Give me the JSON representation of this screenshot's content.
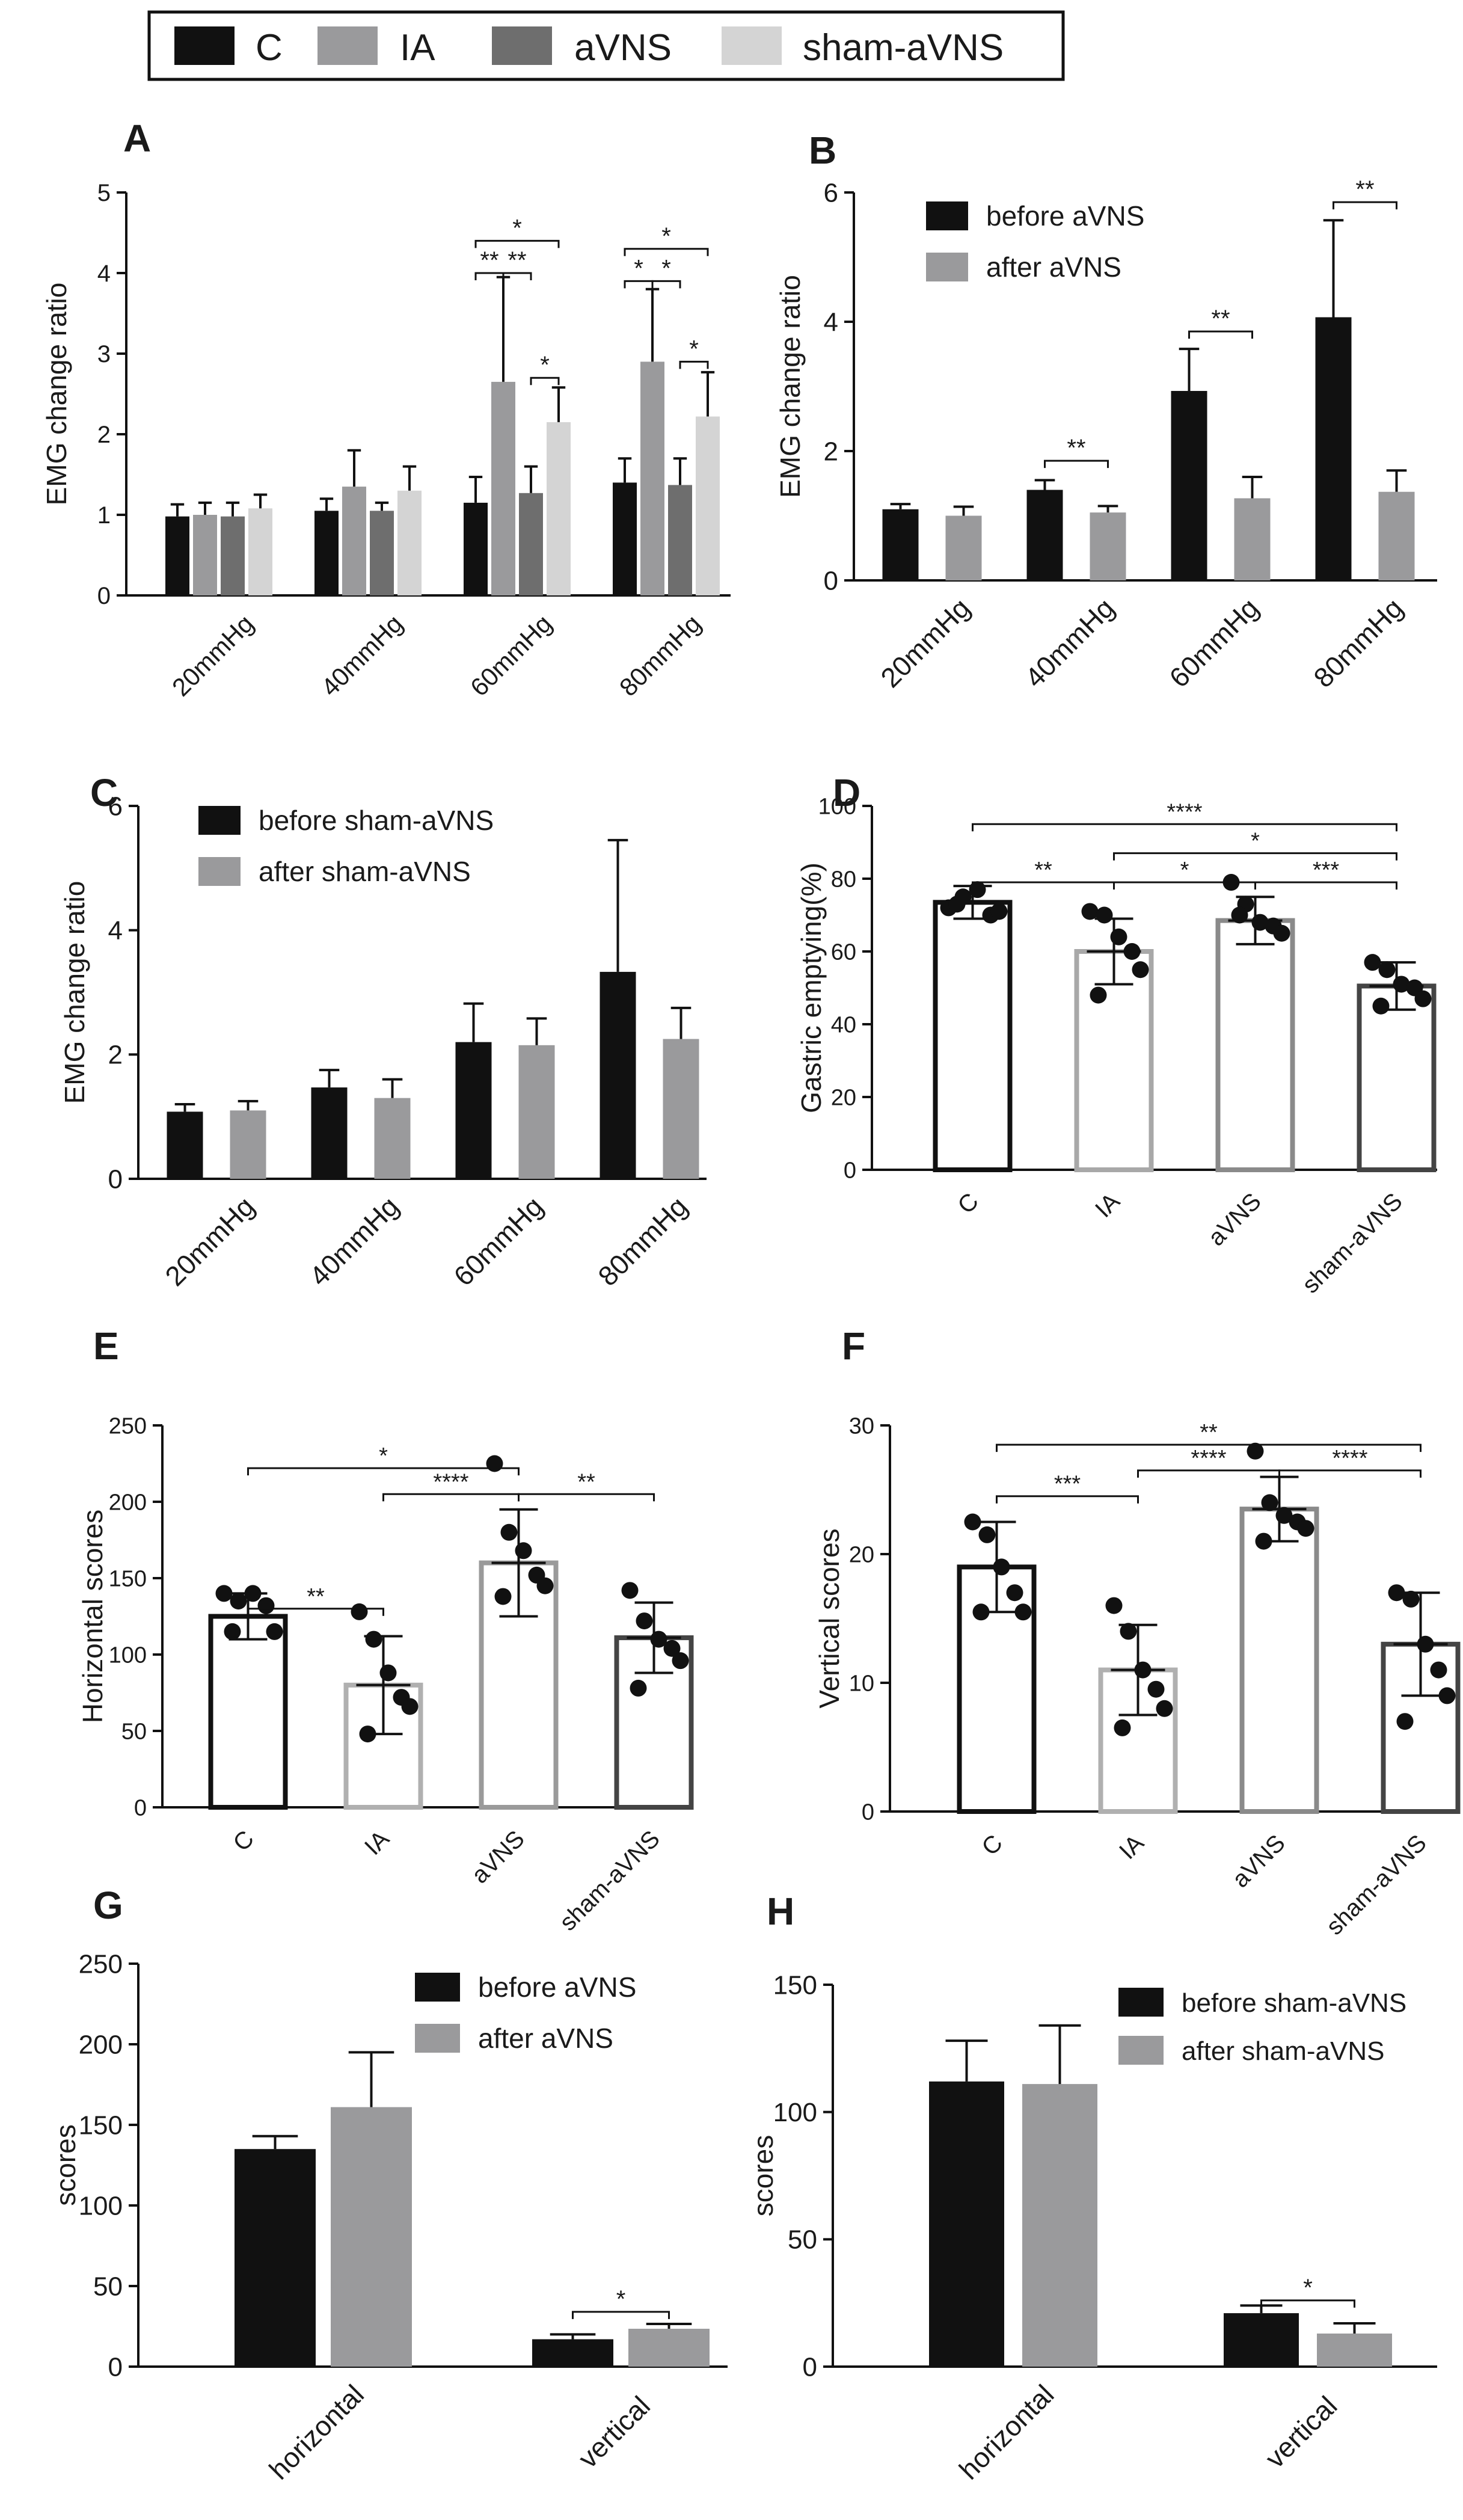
{
  "legend": [
    {
      "label": "C",
      "color": "#111111"
    },
    {
      "label": "IA",
      "color": "#9a9a9c"
    },
    {
      "label": "aVNS",
      "color": "#6e6e6e"
    },
    {
      "label": "sham-aVNS",
      "color": "#d4d4d4"
    }
  ],
  "chart_data": [
    {
      "panel": "A",
      "type": "bar",
      "ylabel": "EMG change ratio",
      "ylim": [
        0,
        5
      ],
      "yticks": [
        0,
        1,
        2,
        3,
        4,
        5
      ],
      "categories": [
        "20mmHg",
        "40mmHg",
        "60mmHg",
        "80mmHg"
      ],
      "series": [
        {
          "name": "C",
          "color": "#111111",
          "values": [
            0.98,
            1.05,
            1.15,
            1.4
          ],
          "errors": [
            0.15,
            0.15,
            0.32,
            0.3
          ]
        },
        {
          "name": "IA",
          "color": "#9a9a9c",
          "values": [
            1.0,
            1.35,
            2.65,
            2.9
          ],
          "errors": [
            0.15,
            0.45,
            1.3,
            0.9
          ]
        },
        {
          "name": "aVNS",
          "color": "#6e6e6e",
          "values": [
            0.98,
            1.05,
            1.27,
            1.37
          ],
          "errors": [
            0.17,
            0.1,
            0.33,
            0.33
          ]
        },
        {
          "name": "sham-aVNS",
          "color": "#d4d4d4",
          "values": [
            1.08,
            1.3,
            2.15,
            2.22
          ],
          "errors": [
            0.17,
            0.3,
            0.43,
            0.55
          ]
        }
      ],
      "significance": [
        {
          "cat": 2,
          "from": 0,
          "to": 3,
          "y": 4.4,
          "label": "*"
        },
        {
          "cat": 2,
          "from": 0,
          "to": 1,
          "y": 4.0,
          "label": "**"
        },
        {
          "cat": 2,
          "from": 1,
          "to": 2,
          "y": 4.0,
          "label": "**"
        },
        {
          "cat": 2,
          "from": 2,
          "to": 3,
          "y": 2.7,
          "label": "*"
        },
        {
          "cat": 3,
          "from": 0,
          "to": 3,
          "y": 4.3,
          "label": "*"
        },
        {
          "cat": 3,
          "from": 0,
          "to": 1,
          "y": 3.9,
          "label": "*"
        },
        {
          "cat": 3,
          "from": 1,
          "to": 2,
          "y": 3.9,
          "label": "*"
        },
        {
          "cat": 3,
          "from": 2,
          "to": 3,
          "y": 2.9,
          "label": "*"
        }
      ]
    },
    {
      "panel": "B",
      "type": "bar",
      "ylabel": "EMG change ratio",
      "ylim": [
        0,
        6
      ],
      "yticks": [
        0,
        2,
        4,
        6
      ],
      "categories": [
        "20mmHg",
        "40mmHg",
        "60mmHg",
        "80mmHg"
      ],
      "series": [
        {
          "name": "before aVNS",
          "color": "#111111",
          "values": [
            1.1,
            1.4,
            2.93,
            4.07
          ],
          "errors": [
            0.08,
            0.15,
            0.65,
            1.5
          ]
        },
        {
          "name": "after aVNS",
          "color": "#9a9a9c",
          "values": [
            1.0,
            1.05,
            1.27,
            1.37
          ],
          "errors": [
            0.14,
            0.1,
            0.33,
            0.33
          ]
        }
      ],
      "legend": [
        "before aVNS",
        "after aVNS"
      ],
      "significance": [
        {
          "cat": 1,
          "from": 0,
          "to": 1,
          "y": 1.85,
          "label": "**"
        },
        {
          "cat": 2,
          "from": 0,
          "to": 1,
          "y": 3.85,
          "label": "**"
        },
        {
          "cat": 3,
          "from": 0,
          "to": 1,
          "y": 5.85,
          "label": "**"
        }
      ]
    },
    {
      "panel": "C",
      "type": "bar",
      "ylabel": "EMG change ratio",
      "ylim": [
        0,
        6
      ],
      "yticks": [
        0,
        2,
        4,
        6
      ],
      "categories": [
        "20mmHg",
        "40mmHg",
        "60mmHg",
        "80mmHg"
      ],
      "series": [
        {
          "name": "before sham-aVNS",
          "color": "#111111",
          "values": [
            1.08,
            1.47,
            2.2,
            3.33
          ],
          "errors": [
            0.12,
            0.28,
            0.62,
            2.12
          ]
        },
        {
          "name": "after sham-aVNS",
          "color": "#9a9a9c",
          "values": [
            1.1,
            1.3,
            2.15,
            2.25
          ],
          "errors": [
            0.15,
            0.3,
            0.43,
            0.5
          ]
        }
      ],
      "legend": [
        "before sham-aVNS",
        "after sham-aVNS"
      ],
      "significance": []
    },
    {
      "panel": "D",
      "type": "scatter-bar",
      "ylabel": "Gastric emptying(%)",
      "ylim": [
        0,
        100
      ],
      "yticks": [
        0,
        20,
        40,
        60,
        80,
        100
      ],
      "categories": [
        "C",
        "IA",
        "aVNS",
        "sham-aVNS"
      ],
      "colors": [
        "#111111",
        "#a8a8a8",
        "#8a8a8a",
        "#444444"
      ],
      "means": [
        73.5,
        60,
        68.5,
        50.5
      ],
      "errors": [
        4.5,
        9,
        6.5,
        6.5
      ],
      "points": [
        [
          72,
          75,
          77,
          70,
          71,
          73
        ],
        [
          71,
          70,
          64,
          60,
          55,
          48
        ],
        [
          79,
          73,
          68,
          67,
          65,
          70
        ],
        [
          57,
          55,
          51,
          50,
          47,
          45
        ]
      ],
      "significance": [
        {
          "from": 0,
          "to": 3,
          "y": 95,
          "label": "****"
        },
        {
          "from": 1,
          "to": 3,
          "y": 87,
          "label": "*"
        },
        {
          "from": 0,
          "to": 1,
          "y": 79,
          "label": "**"
        },
        {
          "from": 1,
          "to": 2,
          "y": 79,
          "label": "*"
        },
        {
          "from": 2,
          "to": 3,
          "y": 79,
          "label": "***"
        }
      ]
    },
    {
      "panel": "E",
      "type": "scatter-bar",
      "ylabel": "Horizontal scores",
      "ylim": [
        0,
        250
      ],
      "yticks": [
        0,
        50,
        100,
        150,
        200,
        250
      ],
      "categories": [
        "C",
        "IA",
        "aVNS",
        "sham-aVNS"
      ],
      "colors": [
        "#111111",
        "#b0b0b0",
        "#9a9a9a",
        "#444444"
      ],
      "means": [
        125,
        80,
        160,
        111
      ],
      "errors": [
        15,
        32,
        35,
        23
      ],
      "points": [
        [
          140,
          135,
          140,
          132,
          115,
          115
        ],
        [
          128,
          110,
          88,
          72,
          66,
          48
        ],
        [
          225,
          180,
          168,
          152,
          145,
          138
        ],
        [
          142,
          122,
          110,
          104,
          96,
          78
        ]
      ],
      "significance": [
        {
          "from": 0,
          "to": 2,
          "y": 222,
          "label": "*"
        },
        {
          "from": 1,
          "to": 2,
          "y": 205,
          "label": "****"
        },
        {
          "from": 2,
          "to": 3,
          "y": 205,
          "label": "**"
        },
        {
          "from": 0,
          "to": 1,
          "y": 130,
          "label": "**"
        }
      ]
    },
    {
      "panel": "F",
      "type": "scatter-bar",
      "ylabel": "Vertical scores",
      "ylim": [
        0,
        30
      ],
      "yticks": [
        0,
        10,
        20,
        30
      ],
      "categories": [
        "C",
        "IA",
        "aVNS",
        "sham-aVNS"
      ],
      "colors": [
        "#111111",
        "#b0b0b0",
        "#8a8a8a",
        "#444444"
      ],
      "means": [
        19,
        11,
        23.5,
        13
      ],
      "errors": [
        3.5,
        3.5,
        2.5,
        4
      ],
      "points": [
        [
          22.5,
          21.5,
          19,
          17,
          15.5,
          15.5
        ],
        [
          16,
          14,
          11,
          9.5,
          8,
          6.5
        ],
        [
          28,
          24,
          23,
          22.5,
          22,
          21
        ],
        [
          17,
          16.5,
          13,
          11,
          9,
          7
        ]
      ],
      "significance": [
        {
          "from": 0,
          "to": 3,
          "y": 28.5,
          "label": "**"
        },
        {
          "from": 1,
          "to": 2,
          "y": 26.5,
          "label": "****"
        },
        {
          "from": 2,
          "to": 3,
          "y": 26.5,
          "label": "****"
        },
        {
          "from": 0,
          "to": 1,
          "y": 24.5,
          "label": "***"
        }
      ]
    },
    {
      "panel": "G",
      "type": "bar",
      "ylabel": "scores",
      "ylim": [
        0,
        250
      ],
      "yticks": [
        0,
        50,
        100,
        150,
        200,
        250
      ],
      "categories": [
        "horizontal",
        "vertical"
      ],
      "series": [
        {
          "name": "before aVNS",
          "color": "#111111",
          "values": [
            135,
            17
          ],
          "errors": [
            8,
            3
          ]
        },
        {
          "name": "after aVNS",
          "color": "#9a9a9c",
          "values": [
            161,
            23.5
          ],
          "errors": [
            34,
            3
          ]
        }
      ],
      "legend": [
        "before aVNS",
        "after aVNS"
      ],
      "significance": [
        {
          "cat": 1,
          "from": 0,
          "to": 1,
          "y": 34,
          "label": "*"
        }
      ]
    },
    {
      "panel": "H",
      "type": "bar",
      "ylabel": "scores",
      "ylim": [
        0,
        150
      ],
      "yticks": [
        0,
        50,
        100,
        150
      ],
      "categories": [
        "horizontal",
        "vertical"
      ],
      "series": [
        {
          "name": "before sham-aVNS",
          "color": "#111111",
          "values": [
            112,
            21
          ],
          "errors": [
            16,
            3
          ]
        },
        {
          "name": "after sham-aVNS",
          "color": "#9a9a9c",
          "values": [
            111,
            13
          ],
          "errors": [
            23,
            4
          ]
        }
      ],
      "legend": [
        "before sham-aVNS",
        "after sham-aVNS"
      ],
      "significance": [
        {
          "cat": 1,
          "from": 0,
          "to": 1,
          "y": 26,
          "label": "*"
        }
      ]
    }
  ]
}
